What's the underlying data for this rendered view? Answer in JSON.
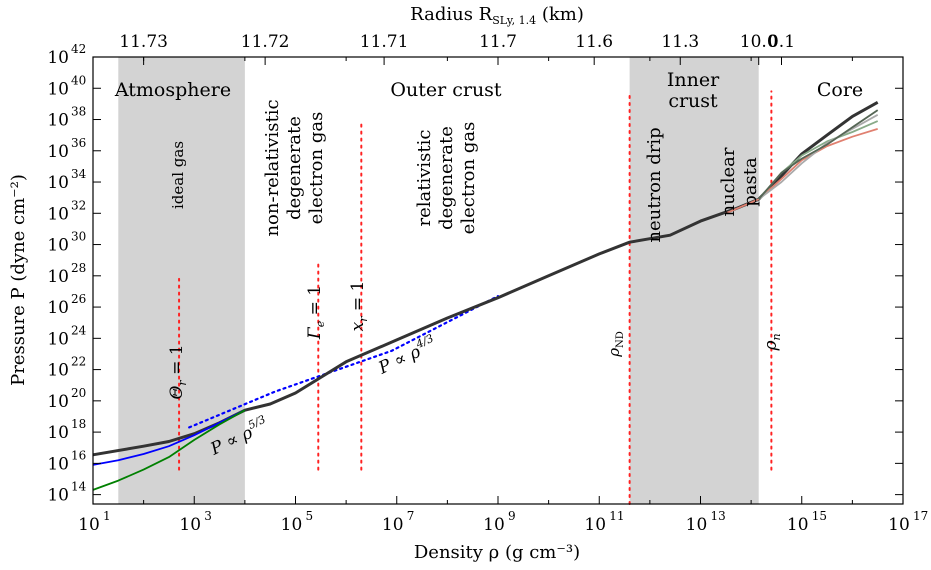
{
  "chart_data": {
    "type": "line",
    "xlabel": "Density ρ (g cm⁻³)",
    "ylabel": "Pressure P (dyne cm⁻²)",
    "top_axis_label": "Radius R",
    "top_axis_label_sub": "SLy, 1.4",
    "top_axis_label_unit": " (km)",
    "x_scale": "log",
    "y_scale": "log",
    "xlim_exp": [
      1,
      17
    ],
    "ylim_exp": [
      13.4,
      42
    ],
    "grid": false,
    "legend": "none",
    "x_ticks": [
      {
        "exp": 1,
        "label": "10"
      },
      {
        "exp": 3,
        "label": "10"
      },
      {
        "exp": 5,
        "label": "10"
      },
      {
        "exp": 7,
        "label": "10"
      },
      {
        "exp": 9,
        "label": "10"
      },
      {
        "exp": 11,
        "label": "10"
      },
      {
        "exp": 13,
        "label": "10"
      },
      {
        "exp": 15,
        "label": "10"
      },
      {
        "exp": 17,
        "label": "10"
      }
    ],
    "x_tick_exps": [
      "1",
      "3",
      "5",
      "7",
      "9",
      "11",
      "13",
      "15",
      "17"
    ],
    "y_ticks_exp": [
      14,
      16,
      18,
      20,
      22,
      24,
      26,
      28,
      30,
      32,
      34,
      36,
      38,
      40,
      42
    ],
    "y_tick_exps": [
      "14",
      "16",
      "18",
      "20",
      "22",
      "24",
      "26",
      "28",
      "30",
      "32",
      "34",
      "36",
      "38",
      "40",
      "42"
    ],
    "top_ticks": [
      {
        "x_exp": 2.0,
        "label": "11.73"
      },
      {
        "x_exp": 4.4,
        "label": "11.72"
      },
      {
        "x_exp": 6.75,
        "label": "11.71"
      },
      {
        "x_exp": 9.0,
        "label": "11.7"
      },
      {
        "x_exp": 10.9,
        "label": "11.6"
      },
      {
        "x_exp": 12.6,
        "label": "11.3"
      },
      {
        "x_exp": 14.15,
        "label": "10.0"
      },
      {
        "x_exp": 14.6,
        "label": "0.1"
      }
    ],
    "regions": [
      {
        "name": "Atmosphere",
        "x_exp": [
          1.5,
          4.0
        ],
        "shaded": true
      },
      {
        "name": "Outer crust",
        "x_exp": [
          4.0,
          11.6
        ],
        "shaded": false
      },
      {
        "name": "Inner crust",
        "x_exp": [
          11.6,
          14.15
        ],
        "shaded": true
      },
      {
        "name": "Core",
        "x_exp": [
          14.15,
          17
        ],
        "shaded": false
      }
    ],
    "region_labels": {
      "atmosphere": "Atmosphere",
      "outer_crust": "Outer crust",
      "inner_crust_1": "Inner",
      "inner_crust_2": "crust",
      "core": "Core"
    },
    "vertical_markers": [
      {
        "x_exp": 2.7,
        "y_exp": [
          15.6,
          27.8
        ],
        "label": "Θ_r = 1"
      },
      {
        "x_exp": 5.45,
        "y_exp": [
          15.6,
          28.8
        ],
        "label": "Γ_e = 1"
      },
      {
        "x_exp": 6.3,
        "y_exp": [
          15.6,
          37.9
        ],
        "label": "x_r = 1"
      },
      {
        "x_exp": 11.6,
        "y_exp": [
          13.4,
          39.8
        ],
        "label": "ρ_ND"
      },
      {
        "x_exp": 14.4,
        "y_exp": [
          15.6,
          39.8
        ],
        "label": "ρ_n"
      }
    ],
    "annotations": {
      "ideal_gas": "ideal gas",
      "nonrel_1": "non-relativistic",
      "nonrel_2": "degenerate",
      "nonrel_3": "electron gas",
      "rel_1": "relativistic",
      "rel_2": "degenerate",
      "rel_3": "electron gas",
      "neutron_drip": "neutron drip",
      "pasta_1": "nuclear",
      "pasta_2": "pasta",
      "theta_label": "Θ",
      "theta_sub": "r",
      "theta_eq": " = 1",
      "gamma_label": "Γ",
      "gamma_sub": "e",
      "gamma_eq": " = 1",
      "x_label": "x",
      "x_sub": "r",
      "x_eq": " = 1",
      "rho_nd": "ρ",
      "rho_nd_sub": "ND",
      "rho_n": "ρ",
      "rho_n_sub": "n",
      "p53": "P ∝ ρ",
      "p53_exp": "5/3",
      "p43": "P ∝ ρ",
      "p43_exp": "4/3"
    },
    "series": [
      {
        "color": "#333333",
        "points": [
          [
            1,
            16.55
          ],
          [
            2,
            17.1
          ],
          [
            2.5,
            17.4
          ],
          [
            3,
            17.9
          ],
          [
            3.5,
            18.6
          ],
          [
            4,
            19.4
          ],
          [
            4.5,
            19.8
          ],
          [
            5,
            20.5
          ],
          [
            5.5,
            21.5
          ],
          [
            6,
            22.5
          ],
          [
            7,
            23.9
          ],
          [
            8,
            25.3
          ],
          [
            9,
            26.6
          ],
          [
            10,
            28.0
          ],
          [
            11,
            29.4
          ],
          [
            11.6,
            30.15
          ],
          [
            12.4,
            30.6
          ],
          [
            13,
            31.5
          ],
          [
            13.7,
            32.3
          ],
          [
            14.15,
            32.9
          ],
          [
            14.6,
            34.4
          ],
          [
            15,
            35.8
          ],
          [
            15.5,
            37.0
          ],
          [
            16,
            38.2
          ],
          [
            16.5,
            39.1
          ]
        ]
      },
      {
        "color": "#0000ff",
        "points": [
          [
            1,
            15.9
          ],
          [
            1.5,
            16.2
          ],
          [
            2,
            16.6
          ],
          [
            2.5,
            17.1
          ],
          [
            3,
            17.8
          ],
          [
            3.5,
            18.6
          ],
          [
            4,
            19.4
          ]
        ]
      },
      {
        "color": "#008000",
        "points": [
          [
            1,
            14.3
          ],
          [
            1.5,
            14.9
          ],
          [
            2,
            15.6
          ],
          [
            2.5,
            16.4
          ],
          [
            3,
            17.5
          ],
          [
            3.5,
            18.5
          ],
          [
            4,
            19.4
          ]
        ]
      },
      {
        "color": "#e08070",
        "points": [
          [
            13.5,
            32.0
          ],
          [
            14.15,
            32.9
          ],
          [
            14.6,
            34.2
          ],
          [
            15,
            35.4
          ],
          [
            15.5,
            36.3
          ],
          [
            16,
            36.9
          ],
          [
            16.5,
            37.4
          ]
        ]
      },
      {
        "color": "#88aa88",
        "points": [
          [
            14.15,
            32.9
          ],
          [
            14.6,
            34.6
          ],
          [
            15,
            35.7
          ],
          [
            15.5,
            36.6
          ],
          [
            16,
            37.2
          ],
          [
            16.5,
            37.9
          ]
        ]
      },
      {
        "color": "#aaaaaa",
        "points": [
          [
            14.15,
            32.9
          ],
          [
            14.6,
            34.0
          ],
          [
            15,
            35.2
          ],
          [
            15.5,
            36.5
          ],
          [
            16,
            37.4
          ],
          [
            16.5,
            38.3
          ]
        ]
      },
      {
        "color": "#556655",
        "points": [
          [
            14.15,
            32.9
          ],
          [
            14.6,
            34.6
          ],
          [
            15,
            35.5
          ],
          [
            15.5,
            36.4
          ],
          [
            16,
            37.5
          ],
          [
            16.5,
            38.6
          ]
        ]
      }
    ],
    "dotted_fits": [
      {
        "color": "#0000ff",
        "points": [
          [
            2.9,
            18.3
          ],
          [
            4.6,
            20.6
          ],
          [
            6.9,
            23.2
          ],
          [
            9,
            26.7
          ]
        ]
      }
    ]
  }
}
